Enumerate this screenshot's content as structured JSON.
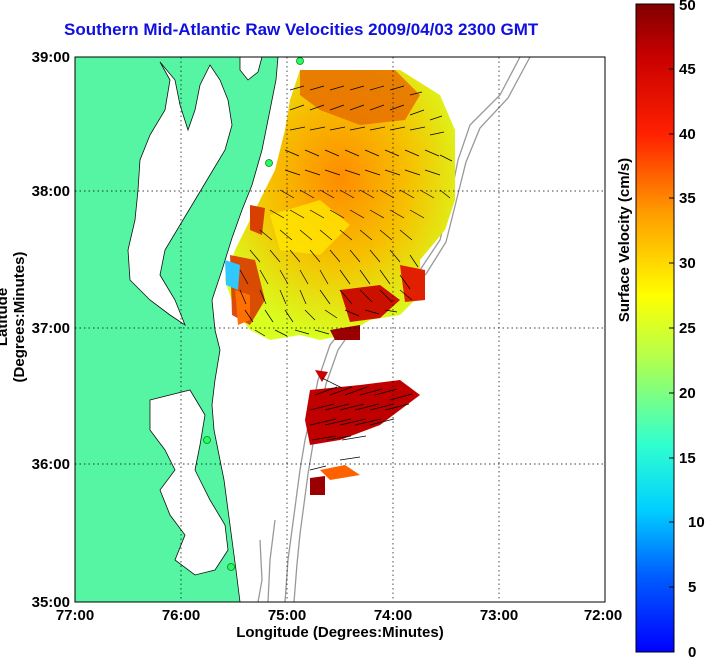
{
  "title": "Southern Mid-Atlantic Raw Velocities 2009/04/03 2300 GMT",
  "xlabel": "Longitude (Degrees:Minutes)",
  "ylabel": "Latitude (Degrees:Minutes)",
  "colorbar_label": "Surface Velocity (cm/s)",
  "chart_data": {
    "type": "heatmap",
    "title": "Southern Mid-Atlantic Raw Velocities 2009/04/03 2300 GMT",
    "xlabel": "Longitude (Degrees:Minutes)",
    "ylabel": "Latitude (Degrees:Minutes)",
    "xlim": [
      -77,
      -72
    ],
    "ylim": [
      35,
      39
    ],
    "x_ticks": [
      "77:00",
      "76:00",
      "75:00",
      "74:00",
      "73:00",
      "72:00"
    ],
    "y_ticks": [
      "39:00",
      "38:00",
      "37:00",
      "36:00",
      "35:00"
    ],
    "grid": true,
    "colorbar": {
      "label": "Surface Velocity (cm/s)",
      "range": [
        0,
        50
      ],
      "ticks": [
        "50",
        "45",
        "40",
        "35",
        "30",
        "25",
        "20",
        "15",
        "10",
        "5",
        "0"
      ]
    },
    "colors": {
      "land": "#55f5a4",
      "title": "#1010e0",
      "bathymetry": "#999999"
    }
  }
}
